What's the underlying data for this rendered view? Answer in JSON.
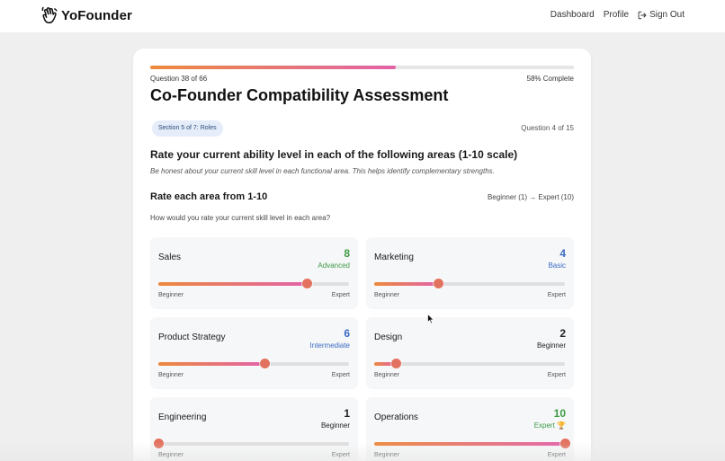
{
  "header": {
    "brand": "YoFounder",
    "nav": [
      {
        "label": "Dashboard"
      },
      {
        "label": "Profile"
      },
      {
        "label": "Sign Out"
      }
    ]
  },
  "assessment": {
    "progress_percent": 58,
    "question_counter": "Question 38 of 66",
    "complete_label": "58% Complete",
    "title": "Co-Founder Compatibility Assessment",
    "section_badge": "Section 5 of 7: Roles",
    "section_question": "Question 4 of 15",
    "question": "Rate your current ability level in each of the following areas (1-10 scale)",
    "help_text": "Be honest about your current skill level in each functional area. This helps identify complementary strengths.",
    "rate_heading": "Rate each area from 1-10",
    "scale_legend": "Beginner (1) → Expert (10)",
    "subprompt": "How would you rate your current skill level in each area?",
    "scale_min": 1,
    "scale_max": 10,
    "low_label": "Beginner",
    "high_label": "Expert",
    "skills": [
      {
        "name": "Sales",
        "score": "8",
        "value": 8,
        "level": "Advanced",
        "color": "#3d9a45"
      },
      {
        "name": "Marketing",
        "score": "4",
        "value": 4,
        "level": "Basic",
        "color": "#3a6bc4"
      },
      {
        "name": "Product Strategy",
        "score": "6",
        "value": 6,
        "level": "Intermediate",
        "color": "#3a6bc4"
      },
      {
        "name": "Design",
        "score": "2",
        "value": 2,
        "level": "Beginner",
        "color": "#222222"
      },
      {
        "name": "Engineering",
        "score": "1",
        "value": 1,
        "level": "Beginner",
        "color": "#222222"
      },
      {
        "name": "Operations",
        "score": "10",
        "value": 10,
        "level": "Expert 🏆",
        "color": "#3d9a45"
      }
    ]
  }
}
